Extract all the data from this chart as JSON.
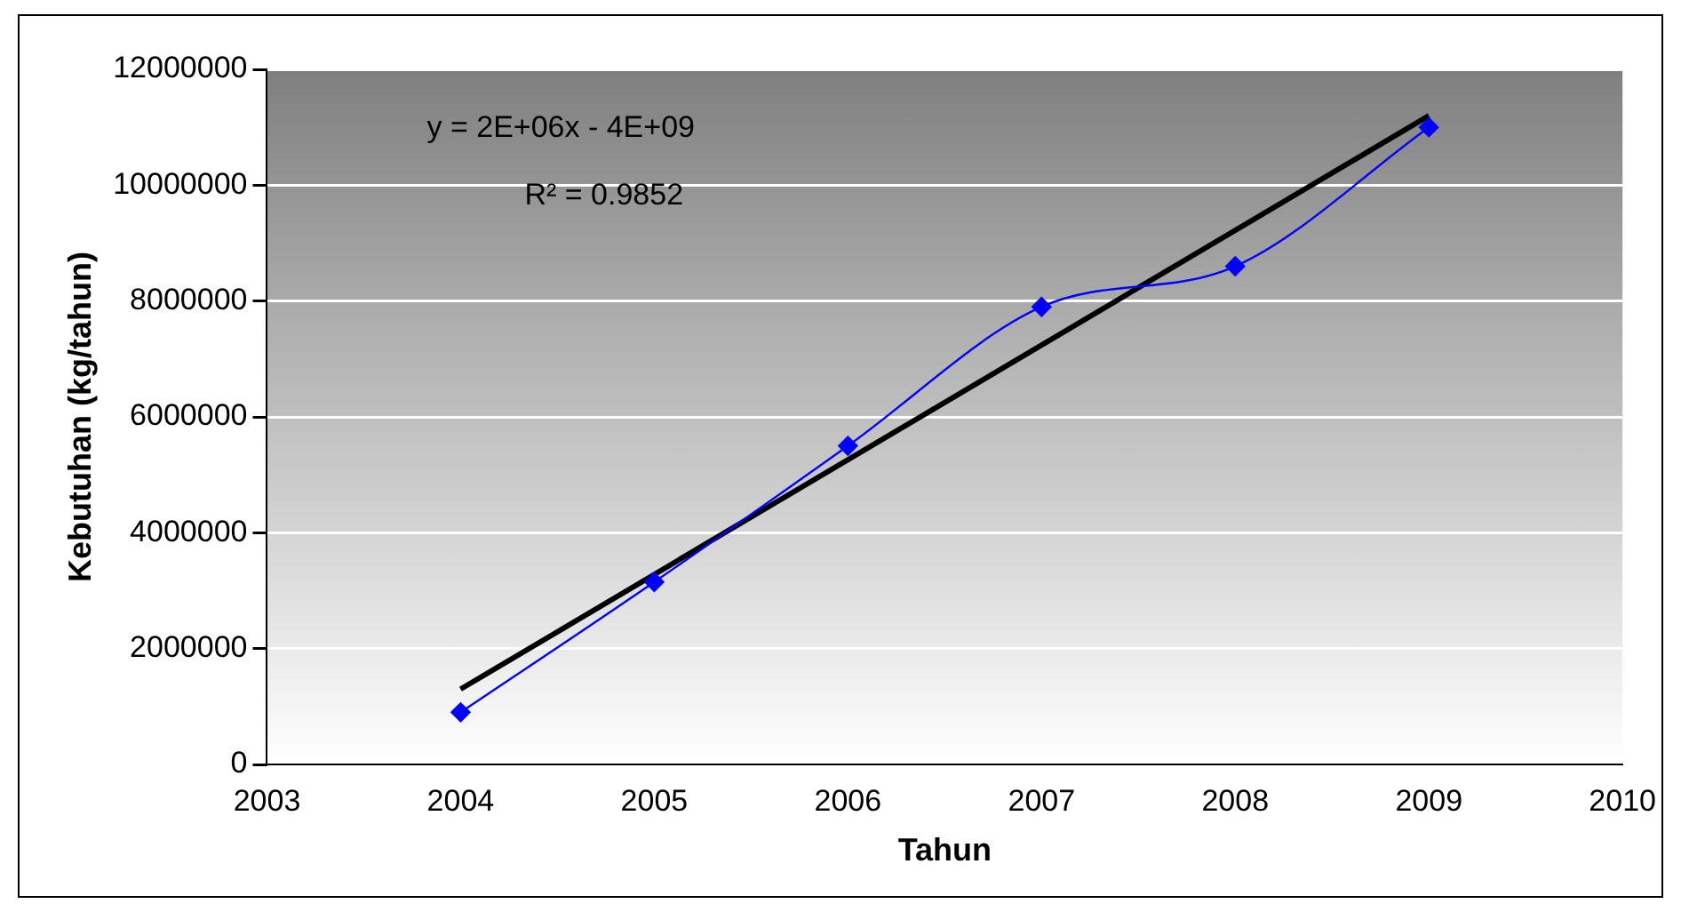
{
  "chart_data": {
    "type": "line",
    "xlabel": "Tahun",
    "ylabel": "Kebutuhan (kg/tahun)",
    "x": [
      2004,
      2005,
      2006,
      2007,
      2008,
      2009
    ],
    "series": [
      {
        "color": "#0000ff",
        "values": [
          900000,
          3150000,
          5500000,
          7900000,
          8600000,
          11000000
        ],
        "marker": "diamond"
      },
      {
        "type": "line",
        "color": "#000000",
        "x": [
          2004,
          2009
        ],
        "values": [
          1300000,
          11200000
        ],
        "marker": "none"
      }
    ],
    "xlim": [
      2003,
      2010
    ],
    "xticks": [
      2003,
      2004,
      2005,
      2006,
      2007,
      2008,
      2009,
      2010
    ],
    "ylim": [
      0,
      12000000
    ],
    "yticks": [
      0,
      2000000,
      4000000,
      6000000,
      8000000,
      10000000,
      12000000
    ],
    "grid": "y",
    "legend": false,
    "annotations": [
      "y = 2E+06x - 4E+09",
      "R² = 0.9852"
    ]
  }
}
